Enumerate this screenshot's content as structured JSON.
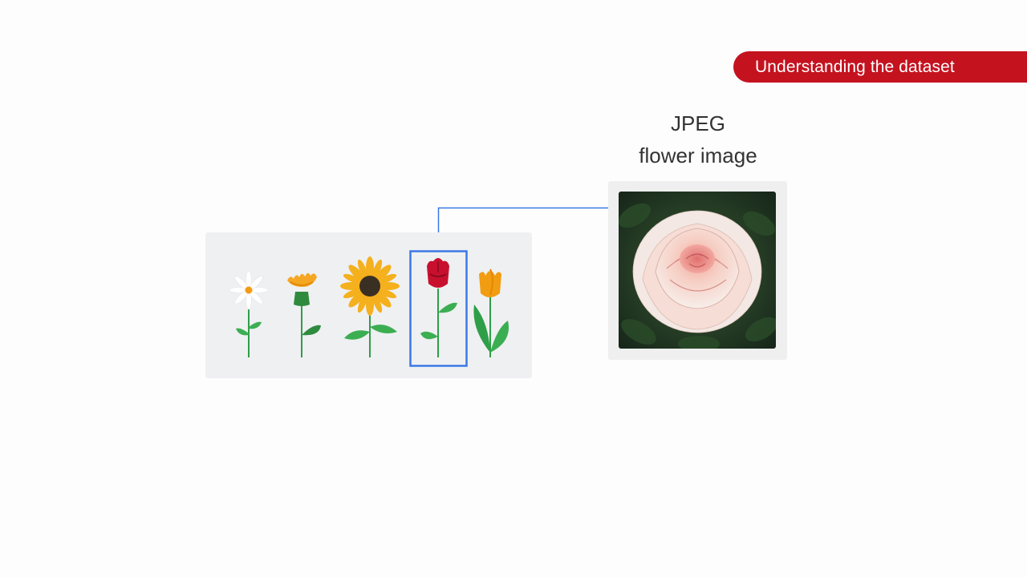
{
  "section_badge": {
    "label": "Understanding the dataset"
  },
  "image_caption": {
    "line1": "JPEG",
    "line2": "flower image"
  },
  "flowers": [
    {
      "name": "daisy",
      "icon": "daisy-icon"
    },
    {
      "name": "dandelion",
      "icon": "dandelion-icon"
    },
    {
      "name": "sunflower",
      "icon": "sunflower-icon"
    },
    {
      "name": "rose",
      "icon": "rose-icon",
      "selected": true
    },
    {
      "name": "tulip",
      "icon": "tulip-icon"
    }
  ],
  "colors": {
    "badge": "#c5121f",
    "selection": "#3b78e7",
    "stem": "#2e9e48",
    "leaf": "#3cae52"
  }
}
